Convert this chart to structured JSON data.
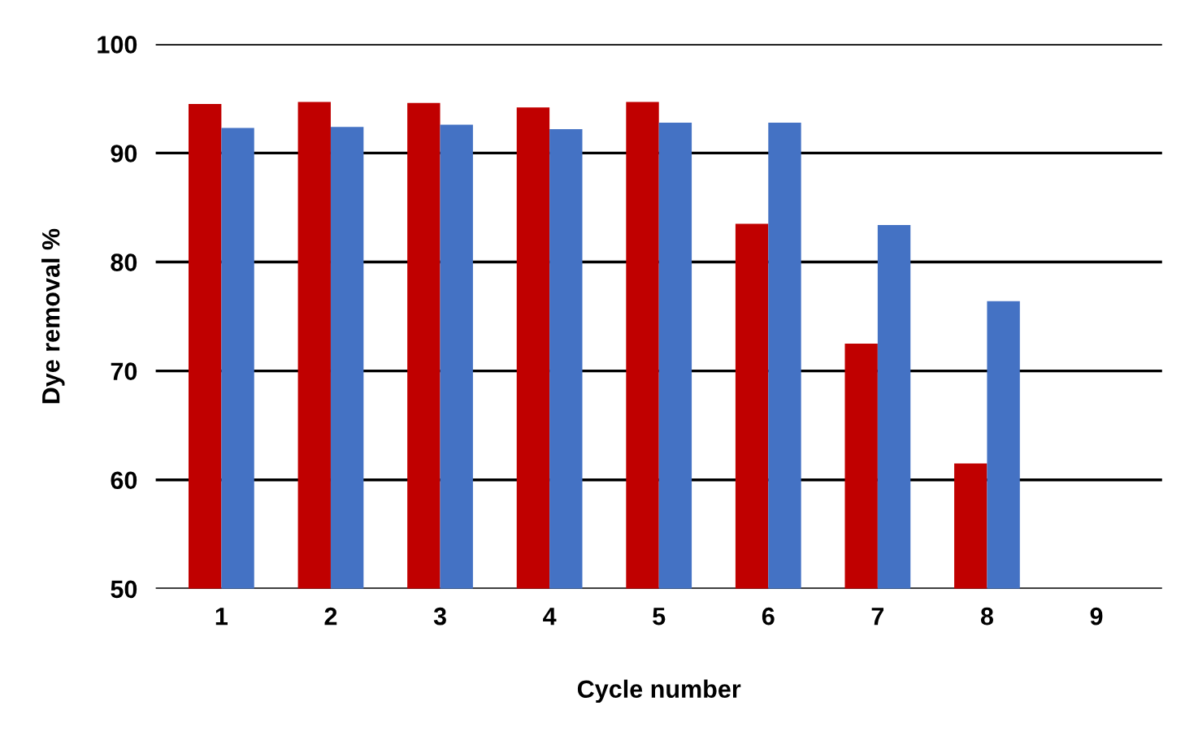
{
  "chart_data": {
    "type": "bar",
    "xlabel": "Cycle number",
    "ylabel": "Dye removal %",
    "categories": [
      "1",
      "2",
      "3",
      "4",
      "5",
      "6",
      "7",
      "8",
      "9"
    ],
    "series": [
      {
        "color": "#c00000",
        "values": [
          94.5,
          94.7,
          94.6,
          94.2,
          94.7,
          83.5,
          72.5,
          61.5,
          null
        ]
      },
      {
        "color": "#4472c4",
        "values": [
          92.3,
          92.4,
          92.6,
          92.2,
          92.8,
          92.8,
          83.4,
          76.4,
          null
        ]
      }
    ],
    "ylim": [
      50,
      100
    ],
    "yticks": [
      50,
      60,
      70,
      80,
      90,
      100
    ],
    "grid": "y",
    "legend": false
  }
}
